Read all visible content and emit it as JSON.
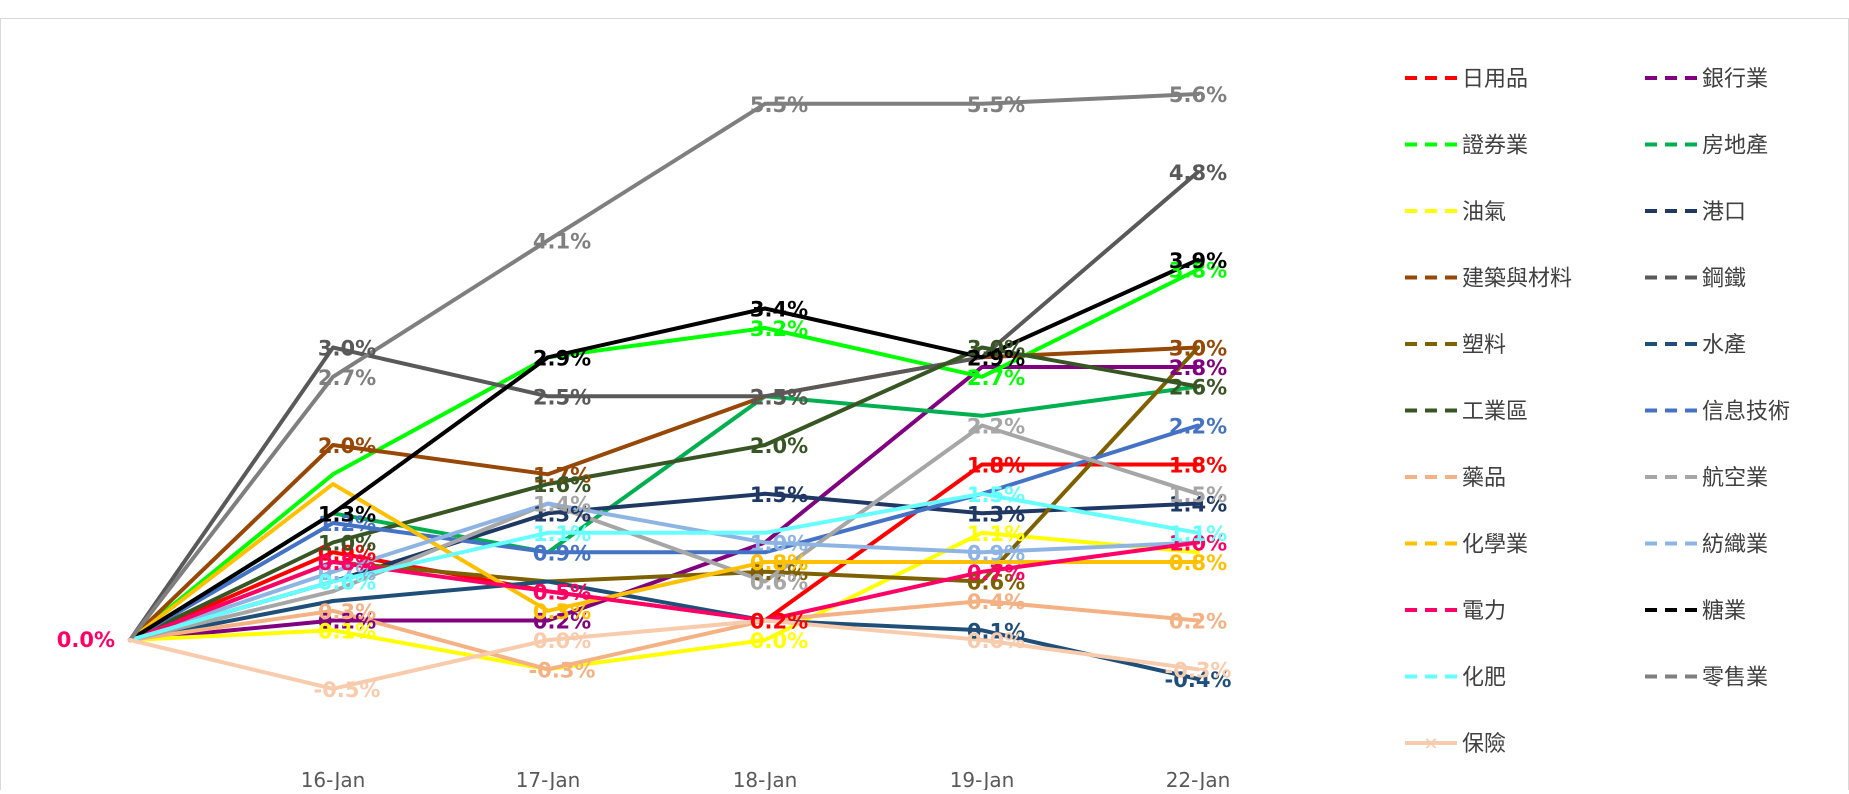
{
  "chart_data": {
    "type": "line",
    "title": "",
    "xlabel": "",
    "ylabel": "",
    "x": [
      "",
      "16-Jan",
      "17-Jan",
      "18-Jan",
      "19-Jan",
      "22-Jan"
    ],
    "ylim": [
      -0.8,
      6.2
    ],
    "grid": false,
    "legend_position": "right",
    "series": [
      {
        "name": "日用品",
        "color": "#ff0000",
        "values": [
          0,
          0.9,
          0.5,
          0.2,
          1.8,
          1.8
        ],
        "labels": [
          "",
          "0.9%",
          "0.5%",
          "0.2%",
          "1.8%",
          "1.8%"
        ]
      },
      {
        "name": "銀行業",
        "color": "#800080",
        "values": [
          0,
          0.2,
          0.2,
          1.0,
          2.8,
          2.8
        ],
        "labels": [
          "",
          "0.2%",
          "0.2%",
          "",
          "",
          "2.8%"
        ]
      },
      {
        "name": "證券業",
        "color": "#00ff00",
        "values": [
          0,
          1.7,
          2.9,
          3.2,
          2.7,
          3.8
        ],
        "labels": [
          "",
          "",
          "",
          "3.2%",
          "2.7%",
          "3.8%"
        ]
      },
      {
        "name": "房地產",
        "color": "#00b050",
        "values": [
          0,
          1.3,
          0.9,
          2.5,
          2.3,
          2.6
        ],
        "labels": [
          "",
          "",
          "",
          "",
          "",
          ""
        ]
      },
      {
        "name": "油氣",
        "color": "#ffff00",
        "values": [
          0,
          0.1,
          -0.3,
          0.0,
          1.1,
          0.9
        ],
        "labels": [
          "",
          "0.1%",
          "",
          "0.0%",
          "1.1%",
          ""
        ]
      },
      {
        "name": "港口",
        "color": "#1f3864",
        "values": [
          0,
          0.6,
          1.3,
          1.5,
          1.3,
          1.4
        ],
        "labels": [
          "",
          "",
          "1.3%",
          "1.5%",
          "1.3%",
          "1.4%"
        ]
      },
      {
        "name": "建築與材料",
        "color": "#974706",
        "values": [
          0,
          2.0,
          1.7,
          2.5,
          2.9,
          3.0
        ],
        "labels": [
          "",
          "2.0%",
          "1.7%",
          "2.5%",
          "",
          "3.0%"
        ]
      },
      {
        "name": "鋼鐵",
        "color": "#595959",
        "values": [
          0,
          3.0,
          2.5,
          2.5,
          2.9,
          4.8
        ],
        "labels": [
          "",
          "3.0%",
          "2.5%",
          "2.5%",
          "",
          "4.8%"
        ]
      },
      {
        "name": "塑料",
        "color": "#7f6000",
        "values": [
          0,
          0.8,
          0.6,
          0.7,
          0.6,
          3.0
        ],
        "labels": [
          "",
          "",
          "",
          "0.7%",
          "0.6%",
          ""
        ]
      },
      {
        "name": "水產",
        "color": "#1f4e79",
        "values": [
          0,
          0.4,
          0.6,
          0.2,
          0.1,
          -0.4
        ],
        "labels": [
          "",
          "",
          "",
          "",
          "0.1%",
          "-0.4%"
        ]
      },
      {
        "name": "工業區",
        "color": "#375623",
        "values": [
          0,
          1.0,
          1.6,
          2.0,
          3.0,
          2.6
        ],
        "labels": [
          "",
          "1.0%",
          "1.6%",
          "2.0%",
          "3.0%",
          "2.6%"
        ]
      },
      {
        "name": "信息技術",
        "color": "#4472c4",
        "values": [
          0,
          1.2,
          0.9,
          0.9,
          1.5,
          2.2
        ],
        "labels": [
          "",
          "1.2%",
          "0.9%",
          "",
          "",
          "2.2%"
        ]
      },
      {
        "name": "藥品",
        "color": "#f4b183",
        "values": [
          0,
          0.3,
          -0.3,
          0.2,
          0.4,
          0.2
        ],
        "labels": [
          "",
          "0.3%",
          "-0.3%",
          "",
          "0.4%",
          "0.2%"
        ]
      },
      {
        "name": "航空業",
        "color": "#a6a6a6",
        "values": [
          0,
          0.5,
          1.4,
          0.6,
          2.2,
          1.5
        ],
        "labels": [
          "",
          "",
          "1.4%",
          "0.6%",
          "2.2%",
          "1.5%"
        ]
      },
      {
        "name": "化學業",
        "color": "#ffc000",
        "values": [
          0,
          1.6,
          0.3,
          0.8,
          0.8,
          0.8
        ],
        "labels": [
          "",
          "",
          "0.3%",
          "0.8%",
          "",
          "0.8%"
        ]
      },
      {
        "name": "紡織業",
        "color": "#8eb4e3",
        "values": [
          0,
          0.7,
          1.4,
          1.0,
          0.9,
          1.0
        ],
        "labels": [
          "",
          "0.7%",
          "",
          "1.0%",
          "0.9%",
          ""
        ]
      },
      {
        "name": "電力",
        "color": "#ff0066",
        "values": [
          0,
          0.8,
          0.5,
          0.2,
          0.7,
          1.0
        ],
        "labels": [
          "",
          "0.8%",
          "0.5%",
          "",
          "0.7%",
          "1.0%"
        ]
      },
      {
        "name": "糖業",
        "color": "#000000",
        "values": [
          0,
          1.3,
          2.9,
          3.4,
          2.9,
          3.9
        ],
        "labels": [
          "",
          "1.3%",
          "2.9%",
          "3.4%",
          "2.9%",
          "3.9%"
        ]
      },
      {
        "name": "化肥",
        "color": "#66ffff",
        "values": [
          0,
          0.6,
          1.1,
          1.1,
          1.5,
          1.1
        ],
        "labels": [
          "",
          "0.6%",
          "1.1%",
          "",
          "1.5%",
          "1.1%"
        ]
      },
      {
        "name": "零售業",
        "color": "#7f7f7f",
        "values": [
          0,
          2.7,
          4.1,
          5.5,
          5.5,
          5.6
        ],
        "labels": [
          "",
          "2.7%",
          "4.1%",
          "5.5%",
          "5.5%",
          "5.6%"
        ]
      },
      {
        "name": "保險",
        "color": "#f8cbad",
        "values": [
          0,
          -0.5,
          0.0,
          0.2,
          0.0,
          -0.3
        ],
        "labels": [
          "0.0%",
          "-0.5%",
          "0.0%",
          "",
          "0.0%",
          "-0.3%"
        ]
      }
    ]
  }
}
